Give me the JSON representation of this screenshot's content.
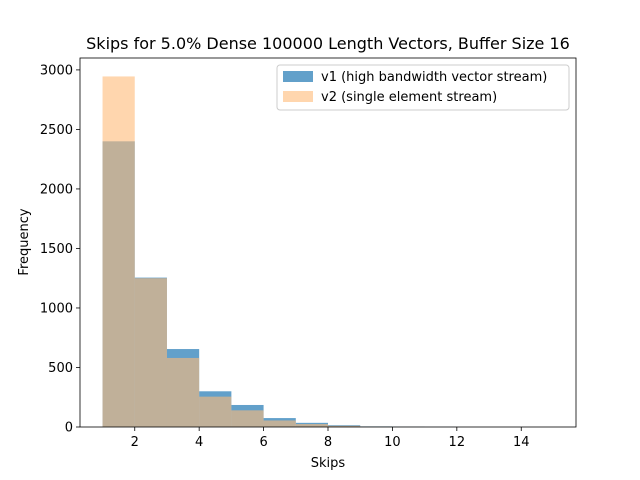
{
  "chart_data": {
    "type": "bar",
    "title": "Skips for 5.0% Dense 100000 Length Vectors, Buffer Size 16",
    "xlabel": "Skips",
    "ylabel": "Frequency",
    "xlim": [
      0.3,
      15.7
    ],
    "ylim": [
      0,
      3100
    ],
    "xticks": [
      2,
      4,
      6,
      8,
      10,
      12,
      14
    ],
    "yticks": [
      0,
      500,
      1000,
      1500,
      2000,
      2500,
      3000
    ],
    "bin_edges": [
      1,
      2,
      3,
      4,
      5,
      6,
      7,
      8,
      9,
      10,
      11,
      12,
      13,
      14,
      15
    ],
    "legend_position": "top-right",
    "series": [
      {
        "name": "v1 (high bandwidth vector stream)",
        "color": "#1f77b4",
        "opacity": 0.7,
        "values": [
          2400,
          1255,
          655,
          300,
          185,
          75,
          35,
          15,
          5,
          2,
          1,
          0,
          0,
          0
        ]
      },
      {
        "name": "v2 (single element stream)",
        "color": "#ffbb78",
        "opacity": 0.6,
        "values": [
          2945,
          1250,
          580,
          255,
          140,
          55,
          25,
          10,
          3,
          1,
          0,
          0,
          0,
          0
        ]
      }
    ]
  }
}
